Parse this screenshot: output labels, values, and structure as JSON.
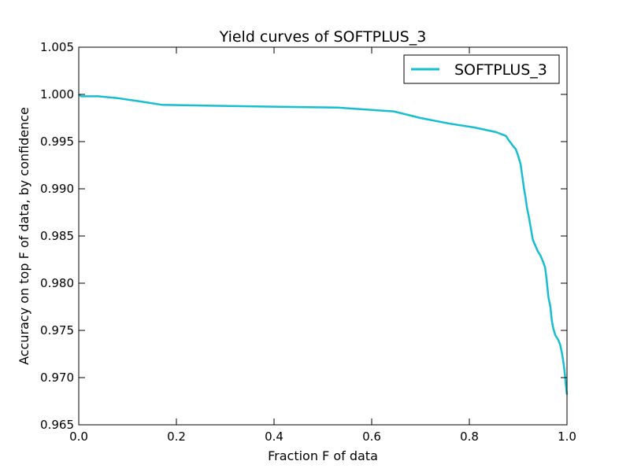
{
  "chart_data": {
    "type": "line",
    "title": "Yield curves of SOFTPLUS_3",
    "xlabel": "Fraction F of data",
    "ylabel": "Accuracy on top F of data, by confidence",
    "xlim": [
      0.0,
      1.0
    ],
    "ylim": [
      0.965,
      1.005
    ],
    "x_ticks": [
      "0.0",
      "0.2",
      "0.4",
      "0.6",
      "0.8",
      "1.0"
    ],
    "y_ticks": [
      "0.965",
      "0.970",
      "0.975",
      "0.980",
      "0.985",
      "0.990",
      "0.995",
      "1.000",
      "1.005"
    ],
    "grid": false,
    "legend_position": "top-right",
    "series": [
      {
        "name": "SOFTPLUS_3",
        "color": "#17BECF",
        "x": [
          0.0,
          0.005,
          0.04,
          0.08,
          0.12,
          0.17,
          0.27,
          0.4,
          0.53,
          0.645,
          0.7,
          0.76,
          0.81,
          0.855,
          0.875,
          0.88,
          0.89,
          0.895,
          0.9,
          0.905,
          0.908,
          0.912,
          0.915,
          0.918,
          0.922,
          0.926,
          0.93,
          0.935,
          0.94,
          0.945,
          0.95,
          0.955,
          0.958,
          0.962,
          0.966,
          0.969,
          0.972,
          0.976,
          0.982,
          0.986,
          0.99,
          0.993,
          0.996,
          0.998,
          1.0
        ],
        "y": [
          0.99998,
          0.9998,
          0.9998,
          0.9996,
          0.9993,
          0.9989,
          0.9988,
          0.9987,
          0.9986,
          0.9982,
          0.9975,
          0.9969,
          0.9965,
          0.996,
          0.9956,
          0.9952,
          0.9945,
          0.9942,
          0.9935,
          0.9926,
          0.9915,
          0.99,
          0.9891,
          0.988,
          0.987,
          0.9858,
          0.9846,
          0.984,
          0.9834,
          0.983,
          0.9824,
          0.9817,
          0.9805,
          0.9785,
          0.9775,
          0.976,
          0.9752,
          0.9745,
          0.974,
          0.9735,
          0.9725,
          0.9715,
          0.9702,
          0.969,
          0.9682
        ]
      }
    ]
  }
}
